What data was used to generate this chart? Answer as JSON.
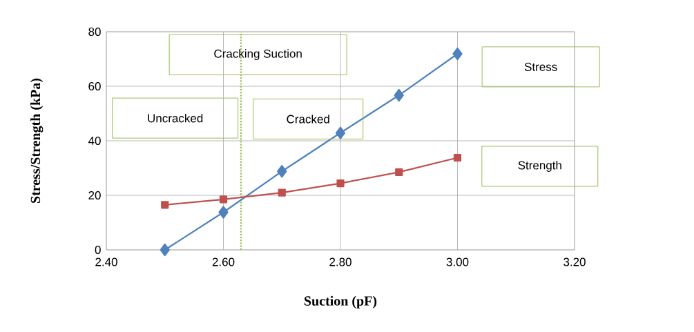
{
  "chart_data": {
    "type": "line",
    "xlabel": "Suction (pF)",
    "ylabel": "Stress/Strength (kPa)",
    "x": [
      2.5,
      2.6,
      2.7,
      2.8,
      2.9,
      3.0
    ],
    "series": [
      {
        "name": "Stress",
        "color": "#4f81bd",
        "marker": "diamond",
        "values": [
          0,
          13.8,
          28.8,
          42.9,
          56.7,
          71.9
        ]
      },
      {
        "name": "Strength",
        "color": "#c0504d",
        "marker": "square",
        "values": [
          16.5,
          18.5,
          21.0,
          24.4,
          28.5,
          33.8
        ]
      }
    ],
    "xlim": [
      2.4,
      3.2
    ],
    "xticks": [
      {
        "value": 2.4,
        "label": "2.40"
      },
      {
        "value": 2.6,
        "label": "2.60"
      },
      {
        "value": 2.8,
        "label": "2.80"
      },
      {
        "value": 3.0,
        "label": "3.00"
      },
      {
        "value": 3.2,
        "label": "3.20"
      }
    ],
    "ylim": [
      0,
      80
    ],
    "yticks": [
      0,
      20,
      40,
      60,
      80
    ],
    "grid": true,
    "legend": false,
    "line_style": "solid",
    "ref_lines": [
      {
        "axis": "x",
        "value": 2.63,
        "color": "#9bbb59",
        "line_style": "dotted"
      }
    ],
    "annotations": [
      "Cracking Suction",
      "Uncracked",
      "Cracked"
    ]
  }
}
